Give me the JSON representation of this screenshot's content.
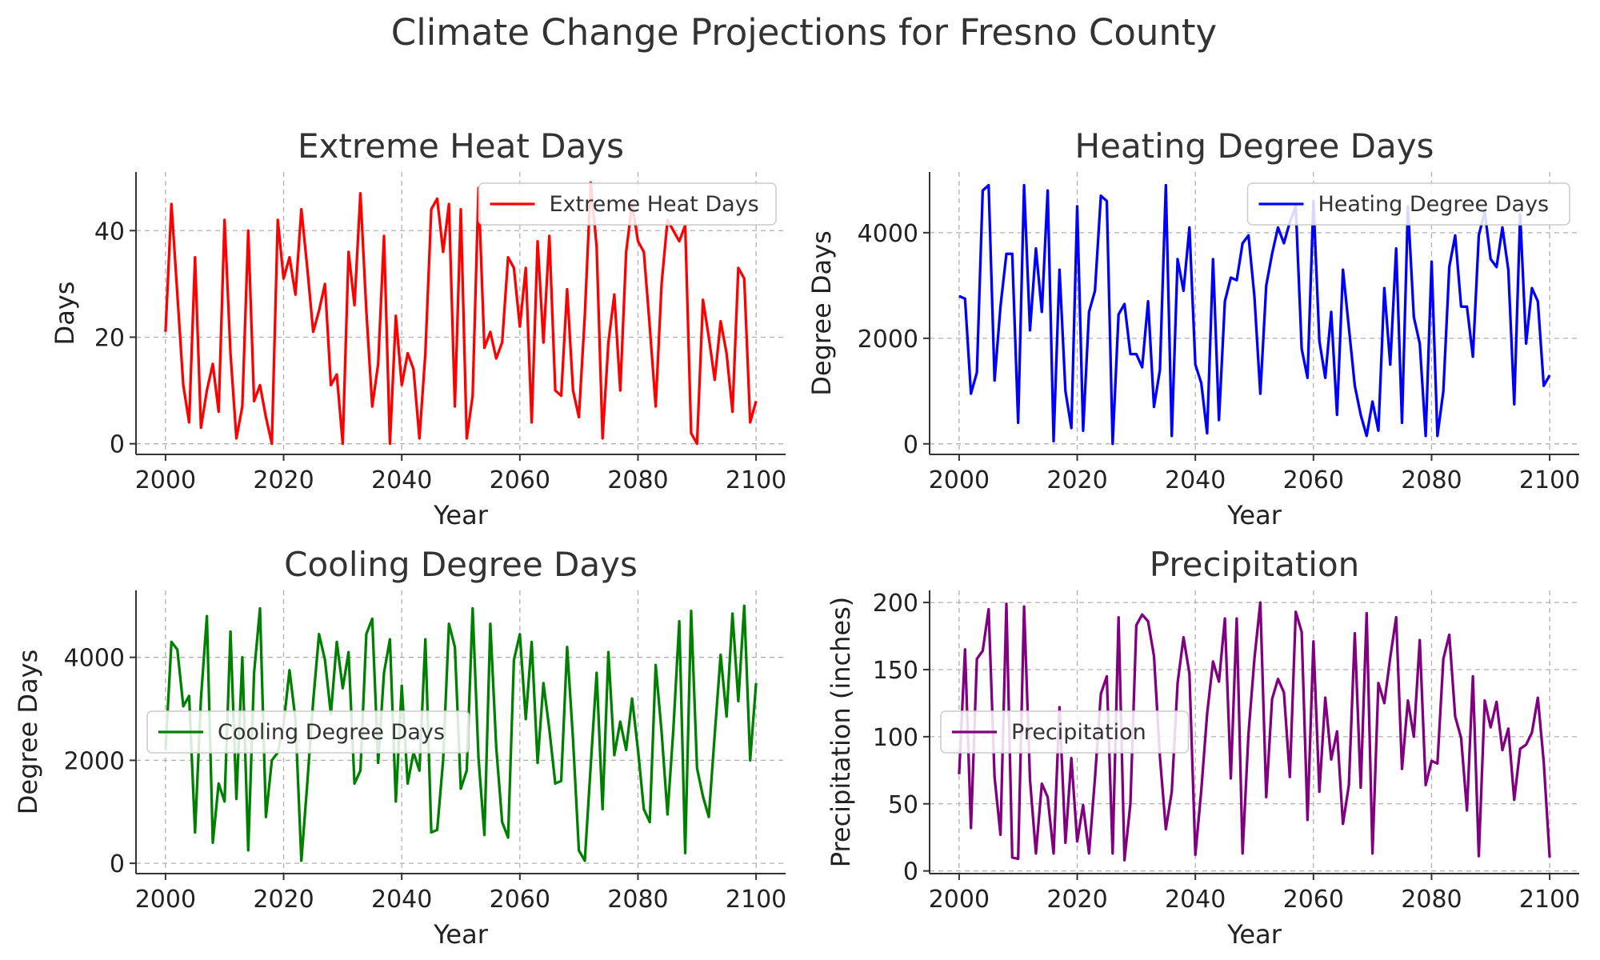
{
  "figure": {
    "title": "Climate Change Projections for Fresno County"
  },
  "chart_data": [
    {
      "type": "line",
      "title": "Extreme Heat Days",
      "xlabel": "Year",
      "ylabel": "Days",
      "xlim": [
        1995,
        2105
      ],
      "ylim": [
        -2,
        51
      ],
      "xticks": [
        2000,
        2020,
        2040,
        2060,
        2080,
        2100
      ],
      "yticks": [
        0,
        20,
        40
      ],
      "grid": true,
      "legend_position": "upper right",
      "x_start": 2000,
      "x_step": 1,
      "series": [
        {
          "name": "Extreme Heat Days",
          "color": "#ff0000",
          "values": [
            21,
            45,
            28,
            11,
            4,
            35,
            3,
            10,
            15,
            6,
            42,
            17,
            1,
            7,
            40,
            8,
            11,
            5,
            0,
            42,
            31,
            35,
            28,
            44,
            33,
            21,
            25,
            30,
            11,
            13,
            0,
            36,
            26,
            47,
            25,
            7,
            15,
            39,
            0,
            24,
            11,
            17,
            14,
            1,
            17,
            44,
            46,
            36,
            45,
            7,
            44,
            1,
            9,
            48,
            18,
            21,
            16,
            19,
            35,
            33,
            22,
            33,
            4,
            38,
            19,
            39,
            10,
            9,
            29,
            10,
            5,
            24,
            49,
            37,
            1,
            19,
            28,
            10,
            36,
            45,
            38,
            36,
            22,
            7,
            30,
            42,
            40,
            38,
            41,
            2,
            0,
            27,
            20,
            12,
            23,
            17,
            6,
            33,
            31,
            4,
            8
          ]
        }
      ]
    },
    {
      "type": "line",
      "title": "Heating Degree Days",
      "xlabel": "Year",
      "ylabel": "Degree Days",
      "xlim": [
        1995,
        2105
      ],
      "ylim": [
        -200,
        5150
      ],
      "xticks": [
        2000,
        2020,
        2040,
        2060,
        2080,
        2100
      ],
      "yticks": [
        0,
        2000,
        4000
      ],
      "grid": true,
      "legend_position": "upper right",
      "x_start": 2000,
      "x_step": 1,
      "series": [
        {
          "name": "Heating Degree Days",
          "color": "#0000ff",
          "values": [
            2800,
            2750,
            950,
            1350,
            4800,
            4900,
            1200,
            2600,
            3600,
            3600,
            400,
            4900,
            2150,
            3700,
            2500,
            4800,
            50,
            3300,
            1000,
            300,
            4500,
            250,
            2500,
            2900,
            4700,
            4600,
            0,
            2450,
            2650,
            1700,
            1700,
            1450,
            2700,
            700,
            1400,
            4900,
            150,
            3500,
            2900,
            4100,
            1500,
            1150,
            200,
            3500,
            450,
            2700,
            3150,
            3100,
            3800,
            3950,
            2800,
            950,
            3000,
            3600,
            4100,
            3800,
            4200,
            4500,
            1800,
            1250,
            4600,
            1950,
            1250,
            2500,
            550,
            3300,
            2200,
            1100,
            550,
            150,
            800,
            250,
            2950,
            1500,
            3700,
            400,
            4500,
            2400,
            1900,
            150,
            3450,
            150,
            1000,
            3350,
            3950,
            2600,
            2600,
            1650,
            3950,
            4400,
            3500,
            3350,
            4100,
            3300,
            750,
            4350,
            1900,
            2950,
            2700,
            1100,
            1300
          ]
        }
      ]
    },
    {
      "type": "line",
      "title": "Cooling Degree Days",
      "xlabel": "Year",
      "ylabel": "Degree Days",
      "xlim": [
        1995,
        2105
      ],
      "ylim": [
        -200,
        5300
      ],
      "xticks": [
        2000,
        2020,
        2040,
        2060,
        2080,
        2100
      ],
      "yticks": [
        0,
        2000,
        4000
      ],
      "grid": true,
      "legend_position": "center left",
      "x_start": 2000,
      "x_step": 1,
      "series": [
        {
          "name": "Cooling Degree Days",
          "color": "#008000",
          "values": [
            2200,
            4300,
            4150,
            3050,
            3250,
            600,
            3200,
            4800,
            400,
            1550,
            1200,
            4500,
            1250,
            4000,
            250,
            3700,
            4950,
            900,
            2000,
            2150,
            2700,
            3750,
            2800,
            50,
            1550,
            3150,
            4450,
            3950,
            2900,
            4300,
            3400,
            4100,
            1550,
            1800,
            4450,
            4750,
            1950,
            3700,
            4350,
            1200,
            3450,
            1550,
            2150,
            1800,
            4350,
            600,
            650,
            2000,
            4650,
            4200,
            1450,
            1800,
            4950,
            2050,
            550,
            4650,
            2250,
            800,
            500,
            3950,
            4450,
            2800,
            4300,
            1950,
            3500,
            2600,
            1550,
            1600,
            4200,
            2400,
            250,
            50,
            1900,
            3700,
            1050,
            4100,
            2100,
            2750,
            2200,
            3200,
            2200,
            1050,
            800,
            3850,
            2550,
            950,
            2600,
            4700,
            200,
            4900,
            1850,
            1300,
            900,
            2500,
            4050,
            2850,
            4850,
            3150,
            5000,
            2000,
            3500
          ]
        }
      ]
    },
    {
      "type": "line",
      "title": "Precipitation",
      "xlabel": "Year",
      "ylabel": "Precipitation (inches)",
      "xlim": [
        1995,
        2105
      ],
      "ylim": [
        -2,
        209
      ],
      "xticks": [
        2000,
        2020,
        2040,
        2060,
        2080,
        2100
      ],
      "yticks": [
        0,
        50,
        100,
        150,
        200
      ],
      "grid": true,
      "legend_position": "center left",
      "x_start": 2000,
      "x_step": 1,
      "series": [
        {
          "name": "Precipitation",
          "color": "#800080",
          "values": [
            72,
            165,
            32,
            158,
            164,
            195,
            70,
            27,
            199,
            10,
            9,
            197,
            68,
            13,
            65,
            55,
            13,
            122,
            21,
            84,
            22,
            49,
            13,
            69,
            132,
            145,
            13,
            189,
            8,
            50,
            183,
            191,
            186,
            160,
            85,
            31,
            59,
            140,
            174,
            147,
            12,
            60,
            117,
            156,
            141,
            188,
            69,
            188,
            13,
            102,
            158,
            200,
            55,
            128,
            143,
            133,
            70,
            193,
            178,
            38,
            171,
            59,
            129,
            83,
            104,
            35,
            64,
            177,
            62,
            192,
            13,
            140,
            125,
            159,
            189,
            76,
            127,
            100,
            172,
            64,
            82,
            80,
            158,
            176,
            115,
            99,
            45,
            145,
            11,
            127,
            107,
            126,
            90,
            106,
            53,
            91,
            94,
            103,
            129,
            81,
            10
          ]
        }
      ]
    }
  ]
}
